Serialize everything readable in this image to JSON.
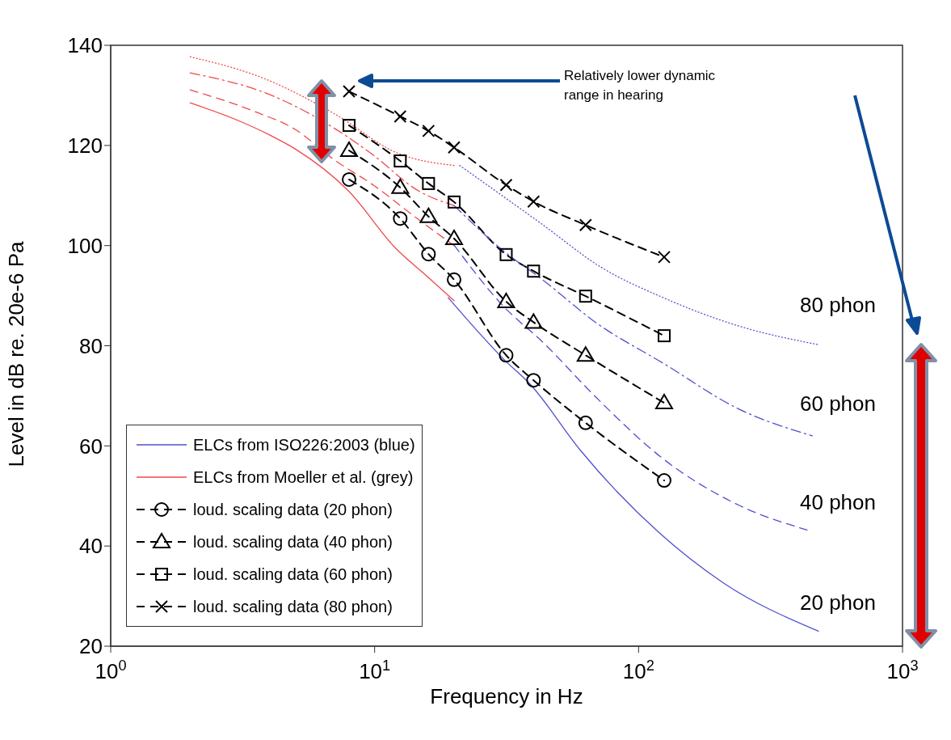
{
  "chart_data": {
    "type": "line",
    "xlabel": "Frequency in Hz",
    "ylabel": "Level in dB re. 20e-6 Pa",
    "log": "x",
    "xlim": [
      1,
      1000
    ],
    "ylim": [
      20,
      140
    ],
    "xticks": [
      {
        "value": 1,
        "label": "10$^{0}$"
      },
      {
        "value": 10,
        "label": "10$^{1}$"
      },
      {
        "value": 100,
        "label": "10$^{2}$"
      },
      {
        "value": 1000,
        "label": "10$^{3}$"
      }
    ],
    "yticks": [
      20,
      40,
      60,
      80,
      100,
      120,
      140
    ],
    "grid": false,
    "legend": "bottom left",
    "series": [
      {
        "name": "ELCs from ISO226:2003 (blue)",
        "color": "#5050d0",
        "line_style": "solid",
        "marker": "none",
        "x": [
          19,
          31,
          39,
          60,
          120,
          210,
          480
        ],
        "values": [
          89.6,
          77.2,
          72.2,
          59.2,
          42.6,
          32.6,
          23.0
        ]
      },
      {
        "name": "ELCs from Moeller et al. (grey)",
        "color": "#f04848",
        "line_style": "solid",
        "marker": "none",
        "x": [
          2,
          3,
          4,
          5,
          8,
          12,
          16,
          20
        ],
        "values": [
          128.5,
          125.1,
          122.1,
          119.3,
          110.8,
          99.5,
          93.6,
          89.0
        ]
      },
      {
        "name": "loud. scaling data (20 phon)",
        "color": "#000000",
        "line_style": "dashed",
        "marker": "circle",
        "x": [
          8,
          12.5,
          16,
          20,
          31.5,
          40,
          63,
          125
        ],
        "values": [
          113.2,
          105.4,
          98.3,
          93.2,
          78.1,
          73.1,
          64.6,
          53.1
        ]
      },
      {
        "name": "loud. scaling data (40 phon)",
        "color": "#000000",
        "line_style": "dashed",
        "marker": "triangle",
        "x": [
          8,
          12.5,
          16,
          20,
          31.5,
          40,
          63,
          125
        ],
        "values": [
          119,
          111.6,
          105.8,
          101.4,
          88.8,
          84.7,
          78.1,
          68.6
        ]
      },
      {
        "name": "loud. scaling data (60 phon)",
        "color": "#000000",
        "line_style": "dashed",
        "marker": "square",
        "x": [
          8,
          12.5,
          16,
          20,
          31.5,
          40,
          63,
          125
        ],
        "values": [
          124,
          116.9,
          112.4,
          108.7,
          98.2,
          94.9,
          89.9,
          82
        ]
      },
      {
        "name": "loud. scaling data (80 phon)",
        "color": "#000000",
        "line_style": "dashed",
        "marker": "cross",
        "x": [
          8,
          12.5,
          16,
          20,
          31.5,
          40,
          63,
          125
        ],
        "values": [
          130.8,
          125.8,
          122.9,
          119.6,
          112.1,
          108.8,
          104.1,
          97.7
        ]
      },
      {
        "color": "#5050d0",
        "line_style": "dashed",
        "marker": "none",
        "x": [
          20,
          31,
          43,
          69,
          124,
          241,
          435
        ],
        "values": [
          100.1,
          87.7,
          80.9,
          69.7,
          57.4,
          48.1,
          43.2
        ]
      },
      {
        "color": "#5050d0",
        "line_style": "dashdot",
        "marker": "none",
        "x": [
          20,
          31,
          43,
          69,
          124,
          241,
          455
        ],
        "values": [
          108.0,
          98.8,
          93.3,
          84.6,
          76.5,
          67.3,
          62
        ]
      },
      {
        "color": "#5050d0",
        "line_style": "dotted",
        "marker": "none",
        "x": [
          21,
          43,
          72,
          124,
          241,
          482
        ],
        "values": [
          116,
          104.3,
          95.7,
          89.6,
          83.9,
          80.2
        ]
      },
      {
        "color": "#f04848",
        "line_style": "dashed",
        "marker": "none",
        "x": [
          2,
          3.5,
          5,
          7,
          10,
          14,
          20
        ],
        "values": [
          131.1,
          126.8,
          123.2,
          117.2,
          111.9,
          106,
          100
        ]
      },
      {
        "color": "#f04848",
        "line_style": "dashdot",
        "marker": "none",
        "x": [
          2,
          4.2,
          7,
          9.7,
          14.8,
          20
        ],
        "values": [
          134.5,
          129.7,
          123.5,
          118.4,
          110.8,
          108
        ]
      },
      {
        "color": "#f04848",
        "line_style": "dotted",
        "marker": "none",
        "x": [
          2,
          3.8,
          7,
          12.3,
          20
        ],
        "values": [
          137.7,
          133.4,
          126.4,
          118.4,
          116
        ]
      }
    ],
    "annotations": [
      "Relatively lower dynamic range in hearing",
      "80 phon",
      "60 phon",
      "40 phon",
      "20 phon"
    ]
  }
}
